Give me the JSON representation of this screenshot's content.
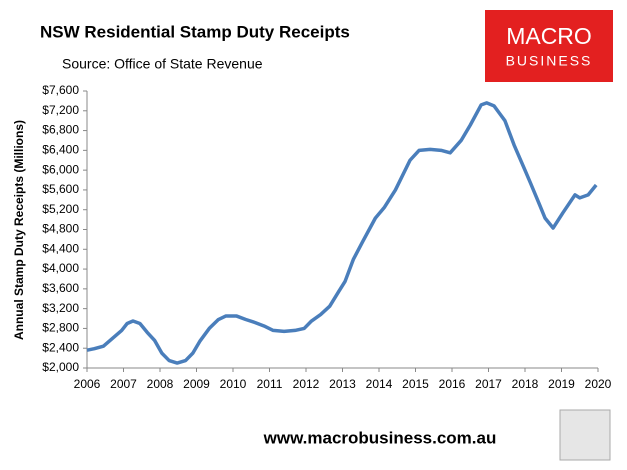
{
  "chart_data": {
    "type": "line",
    "title": "NSW Residential Stamp Duty Receipts",
    "subtitle": "Source: Office of State Revenue",
    "logo": [
      "MACRO",
      "BUSINESS"
    ],
    "footer": "www.macrobusiness.com.au",
    "y_label": "Annual Stamp Duty Receipts (Millions)",
    "x": [
      2006.0,
      2006.2,
      2006.45,
      2006.7,
      2006.95,
      2007.1,
      2007.26,
      2007.45,
      2007.65,
      2007.85,
      2008.05,
      2008.25,
      2008.47,
      2008.7,
      2008.9,
      2009.1,
      2009.35,
      2009.6,
      2009.8,
      2010.1,
      2010.35,
      2010.6,
      2010.85,
      2011.1,
      2011.4,
      2011.7,
      2011.95,
      2012.15,
      2012.4,
      2012.65,
      2012.9,
      2013.07,
      2013.3,
      2013.55,
      2013.9,
      2014.15,
      2014.45,
      2014.85,
      2015.1,
      2015.4,
      2015.7,
      2015.95,
      2016.25,
      2016.5,
      2016.8,
      2016.95,
      2017.15,
      2017.3,
      2017.45,
      2017.7,
      2018.0,
      2018.15,
      2018.4,
      2018.55,
      2018.77,
      2019.04,
      2019.37,
      2019.5,
      2019.73,
      2019.95
    ],
    "series": [
      {
        "name": "NSW Residential Stamp Duty Receipts",
        "color": "#4a7ebb",
        "values": [
          2360,
          2390,
          2440,
          2600,
          2760,
          2900,
          2950,
          2900,
          2720,
          2560,
          2300,
          2150,
          2100,
          2150,
          2300,
          2550,
          2800,
          2980,
          3050,
          3050,
          2980,
          2920,
          2850,
          2760,
          2740,
          2760,
          2800,
          2950,
          3080,
          3250,
          3550,
          3750,
          4200,
          4550,
          5030,
          5250,
          5600,
          6200,
          6400,
          6420,
          6400,
          6350,
          6600,
          6910,
          7320,
          7360,
          7300,
          7150,
          7000,
          6510,
          6000,
          5740,
          5300,
          5030,
          4830,
          5140,
          5500,
          5440,
          5500,
          5700
        ]
      }
    ],
    "xlim": [
      2006,
      2020
    ],
    "xticks": [
      2006,
      2007,
      2008,
      2009,
      2010,
      2011,
      2012,
      2013,
      2014,
      2015,
      2016,
      2017,
      2018,
      2019,
      2020
    ],
    "ylim": [
      2000,
      7600
    ],
    "yticks": [
      {
        "value": 2000,
        "label": "$2,000"
      },
      {
        "value": 2400,
        "label": "$2,400"
      },
      {
        "value": 2800,
        "label": "$2,800"
      },
      {
        "value": 3200,
        "label": "$3,200"
      },
      {
        "value": 3600,
        "label": "$3,600"
      },
      {
        "value": 4000,
        "label": "$4,000"
      },
      {
        "value": 4400,
        "label": "$4,400"
      },
      {
        "value": 4800,
        "label": "$4,800"
      },
      {
        "value": 5200,
        "label": "$5,200"
      },
      {
        "value": 5600,
        "label": "$5,600"
      },
      {
        "value": 6000,
        "label": "$6,000"
      },
      {
        "value": 6400,
        "label": "$6,400"
      },
      {
        "value": 6800,
        "label": "$6,800"
      },
      {
        "value": 7200,
        "label": "$7,200"
      },
      {
        "value": 7600,
        "label": "$7,600"
      }
    ],
    "grid": false
  }
}
